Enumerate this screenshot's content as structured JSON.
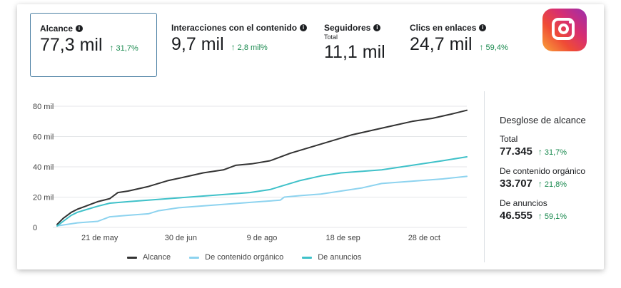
{
  "metrics": [
    {
      "label": "Alcance",
      "sub": "",
      "value": "77,3 mil",
      "change": "31,7%"
    },
    {
      "label": "Interacciones con el contenido",
      "sub": "",
      "value": "9,7 mil",
      "change": "2,8 mil%"
    },
    {
      "label": "Seguidores",
      "sub": "Total",
      "value": "11,1 mil",
      "change": ""
    },
    {
      "label": "Clics en enlaces",
      "sub": "",
      "value": "24,7 mil",
      "change": "59,4%"
    }
  ],
  "breakdown": {
    "title": "Desglose de alcance",
    "items": [
      {
        "label": "Total",
        "value": "77.345",
        "change": "31,7%"
      },
      {
        "label": "De contenido orgánico",
        "value": "33.707",
        "change": "21,8%"
      },
      {
        "label": "De anuncios",
        "value": "46.555",
        "change": "59,1%"
      }
    ]
  },
  "icons": {
    "info": "info-icon",
    "arrow": "arrow-up-icon",
    "logo": "instagram-logo"
  },
  "colors": {
    "positive": "#1a8a4f",
    "selected_border": "#4a7fa3"
  },
  "chart_data": {
    "type": "line",
    "title": "",
    "xlabel": "",
    "ylabel": "",
    "y_ticks": [
      0,
      20,
      40,
      60,
      80
    ],
    "y_tick_labels": [
      "0",
      "20 mil",
      "40 mil",
      "60 mil",
      "80 mil"
    ],
    "ylim": [
      0,
      80
    ],
    "x_ticks": [
      {
        "x": 21,
        "label": "21 de may"
      },
      {
        "x": 61,
        "label": "30 de jun"
      },
      {
        "x": 101,
        "label": "9 de ago"
      },
      {
        "x": 141,
        "label": "18 de sep"
      },
      {
        "x": 181,
        "label": "28 de oct"
      }
    ],
    "xlim": [
      0,
      202
    ],
    "grid": true,
    "legend_position": "bottom",
    "series": [
      {
        "name": "Alcance",
        "color": "#333333",
        "x": [
          0,
          3,
          7,
          10,
          14,
          20,
          26,
          30,
          35,
          45,
          55,
          62,
          72,
          82,
          88,
          96,
          105,
          115,
          125,
          135,
          145,
          155,
          165,
          175,
          185,
          195,
          202
        ],
        "y": [
          2,
          6,
          10,
          12,
          14,
          17,
          19,
          23,
          24,
          27,
          31,
          33,
          36,
          38,
          41,
          42,
          44,
          49,
          53,
          57,
          61,
          64,
          67,
          70,
          72,
          75,
          77.3
        ]
      },
      {
        "name": "De contenido orgánico",
        "color": "#8dd3ef",
        "x": [
          0,
          5,
          10,
          20,
          26,
          35,
          45,
          50,
          60,
          70,
          80,
          90,
          100,
          110,
          112,
          120,
          130,
          140,
          150,
          160,
          170,
          180,
          190,
          202
        ],
        "y": [
          1,
          2,
          3,
          4,
          7,
          8,
          9,
          11,
          13,
          14,
          15,
          16,
          17,
          18,
          20,
          21,
          22,
          24,
          26,
          29,
          30,
          31,
          32,
          33.7
        ]
      },
      {
        "name": "De anuncios",
        "color": "#3fc1c9",
        "x": [
          0,
          3,
          7,
          10,
          15,
          20,
          26,
          35,
          45,
          55,
          65,
          75,
          85,
          95,
          105,
          110,
          120,
          130,
          140,
          150,
          160,
          170,
          180,
          190,
          202
        ],
        "y": [
          1,
          4,
          8,
          10,
          12,
          14,
          16,
          17,
          18,
          19,
          20,
          21,
          22,
          23,
          25,
          27,
          31,
          34,
          36,
          37,
          38,
          40,
          42,
          44,
          46.6
        ]
      }
    ]
  }
}
